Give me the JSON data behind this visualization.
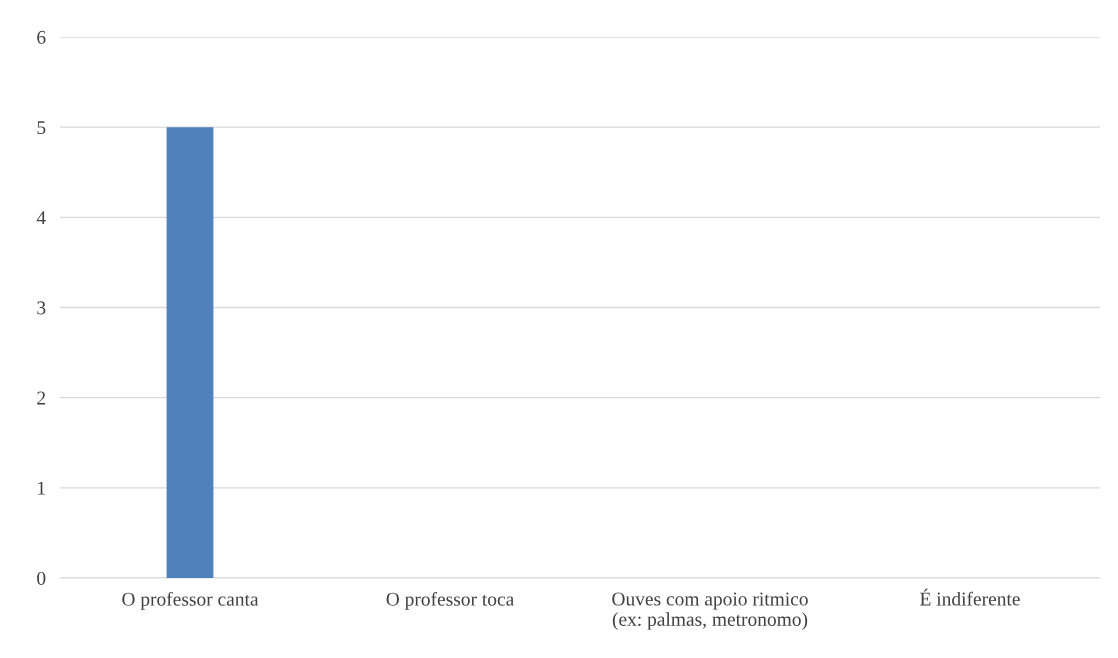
{
  "chart_data": {
    "type": "bar",
    "categories": [
      "O professor canta",
      "O professor toca",
      "Ouves com apoio ritmico\n(ex: palmas, metronomo)",
      "É indiferente"
    ],
    "values": [
      5,
      0,
      0,
      0
    ],
    "color": "#4f81bd",
    "ylim": [
      0,
      6
    ],
    "yticks": [
      0,
      1,
      2,
      3,
      4,
      5,
      6
    ],
    "grid": "y"
  }
}
